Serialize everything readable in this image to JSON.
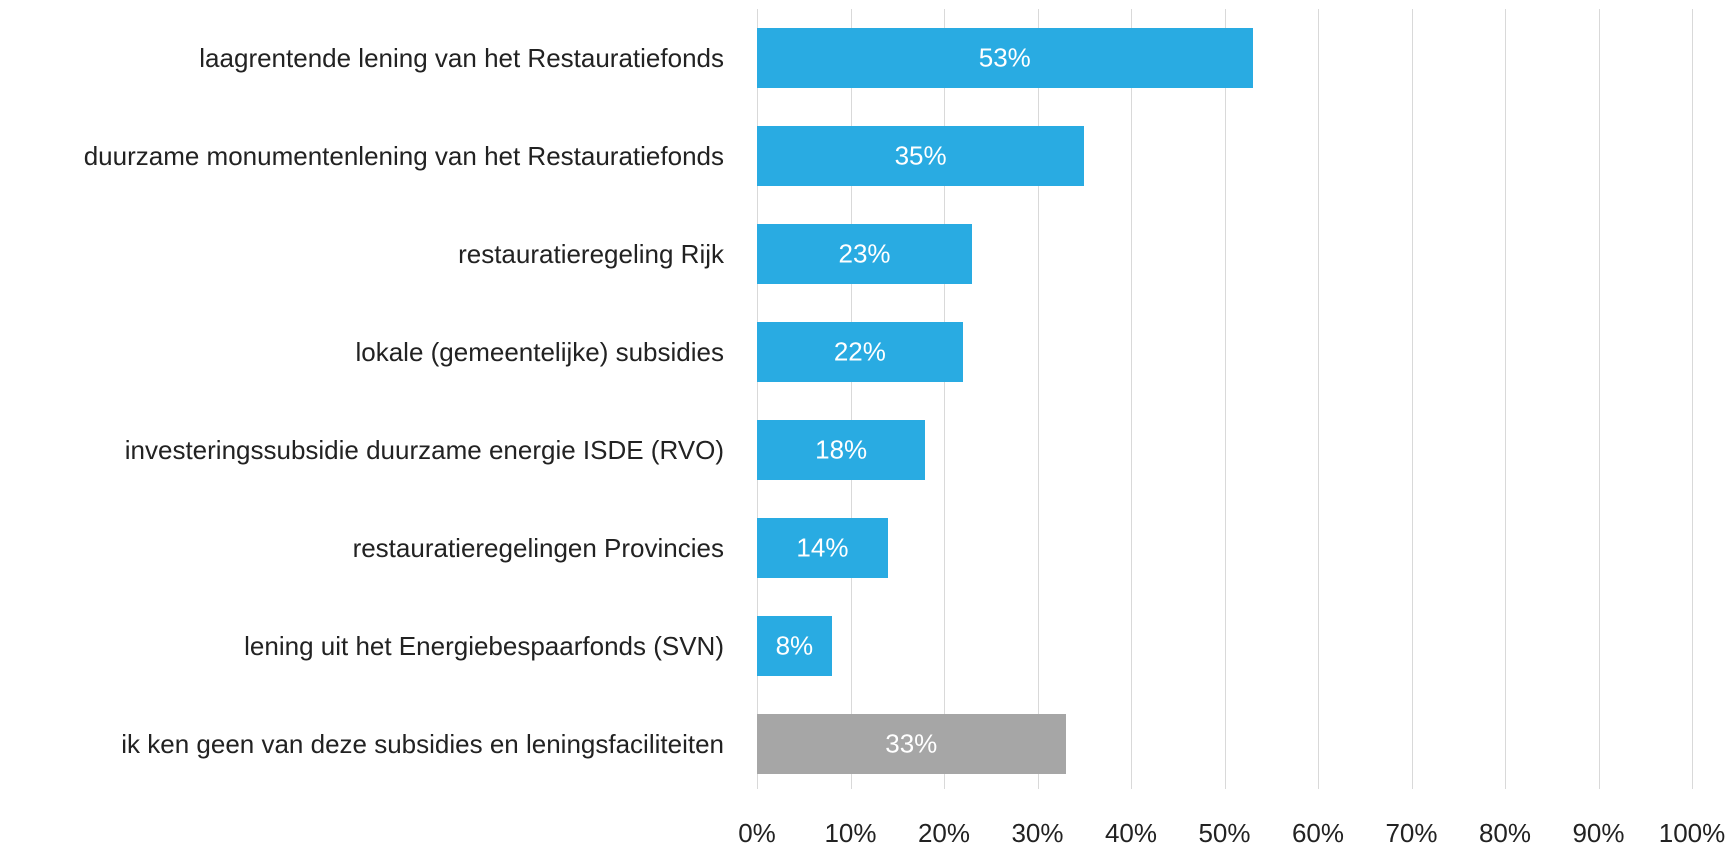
{
  "chart_data": {
    "type": "barh",
    "categories": [
      "laagrentende lening van het Restauratiefonds",
      "duurzame monumentenlening van het Restauratiefonds",
      "restauratieregeling Rijk",
      "lokale (gemeentelijke) subsidies",
      "investeringssubsidie duurzame energie ISDE (RVO)",
      "restauratieregelingen Provincies",
      "lening uit het Energiebespaarfonds (SVN)",
      "ik ken geen van deze subsidies en leningsfaciliteiten"
    ],
    "values": [
      53,
      35,
      23,
      22,
      18,
      14,
      8,
      33
    ],
    "value_labels": [
      "53%",
      "35%",
      "23%",
      "22%",
      "18%",
      "14%",
      "8%",
      "33%"
    ],
    "colors": [
      "#29abe2",
      "#29abe2",
      "#29abe2",
      "#29abe2",
      "#29abe2",
      "#29abe2",
      "#29abe2",
      "#a6a6a6"
    ],
    "xlim": [
      0,
      100
    ],
    "xticks": [
      {
        "value": 0,
        "label": "0%"
      },
      {
        "value": 10,
        "label": "10%"
      },
      {
        "value": 20,
        "label": "20%"
      },
      {
        "value": 30,
        "label": "30%"
      },
      {
        "value": 40,
        "label": "40%"
      },
      {
        "value": 50,
        "label": "50%"
      },
      {
        "value": 60,
        "label": "60%"
      },
      {
        "value": 70,
        "label": "70%"
      },
      {
        "value": 80,
        "label": "80%"
      },
      {
        "value": 90,
        "label": "90%"
      },
      {
        "value": 100,
        "label": "100%"
      }
    ],
    "grid": true
  }
}
